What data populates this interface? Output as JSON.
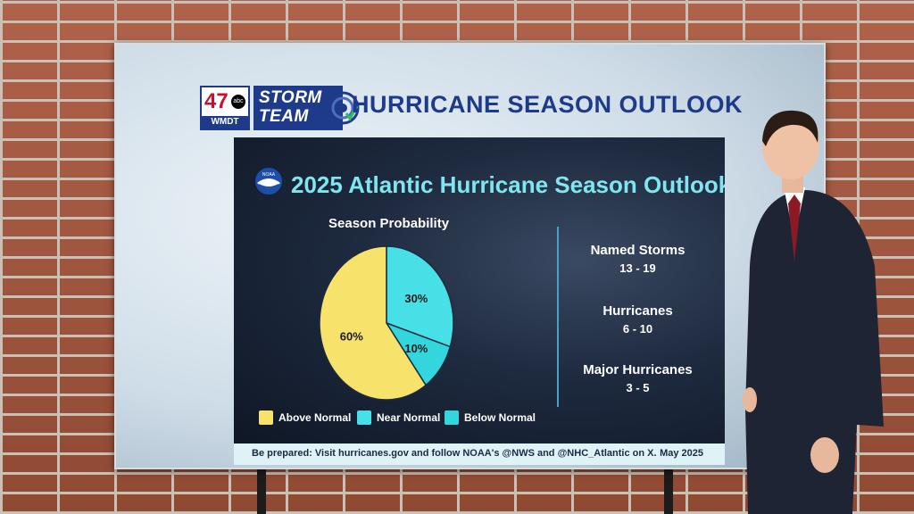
{
  "header": {
    "station_number": "47",
    "station_network": "abc",
    "station_call": "WMDT",
    "team_line1": "STORM",
    "team_line2": "TEAM",
    "title": "HURRICANE SEASON OUTLOOK"
  },
  "panel": {
    "logo_text": "NOAA",
    "title": "2025 Atlantic Hurricane Season Outlook",
    "probability_label": "Season Probability",
    "stats": [
      {
        "label": "Named Storms",
        "value": "13 - 19"
      },
      {
        "label": "Hurricanes",
        "value": "6 - 10"
      },
      {
        "label": "Major Hurricanes",
        "value": "3 - 5"
      }
    ],
    "footer_note": "Be prepared: Visit hurricanes.gov and follow NOAA's @NWS and @NHC_Atlantic on X.",
    "footer_date": "May 2025"
  },
  "chart_data": {
    "type": "pie",
    "title": "Season Probability",
    "categories": [
      "Above Normal",
      "Near Normal",
      "Below Normal"
    ],
    "values": [
      60,
      30,
      10
    ],
    "value_labels": [
      "60%",
      "30%",
      "10%"
    ],
    "colors": [
      "#f7e26b",
      "#46e0e6",
      "#32d6dc"
    ],
    "legend_placement": "bottom"
  }
}
